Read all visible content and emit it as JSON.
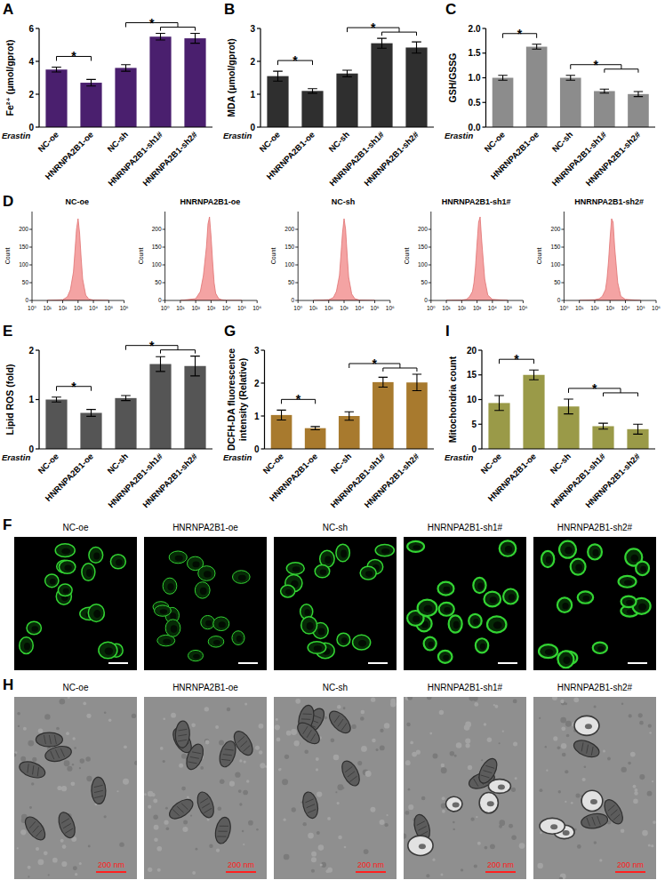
{
  "chart_data": [
    {
      "panel": "A",
      "type": "bar",
      "y_label": "Fe²⁺ (μmol/gprot)",
      "annotation": "Erastin",
      "categories": [
        "NC-oe",
        "HNRNPA2B1-oe",
        "NC-sh",
        "HNRNPA2B1-sh1#",
        "HNRNPA2B1-sh2#"
      ],
      "values": [
        3.5,
        2.7,
        3.6,
        5.5,
        5.4
      ],
      "errors": [
        0.15,
        0.2,
        0.2,
        0.2,
        0.3
      ],
      "color": "#4a1f6e",
      "ylim": [
        0,
        6
      ],
      "yticks": [
        0,
        2,
        4,
        6
      ],
      "significance": [
        {
          "groups": [
            "NC-oe",
            "HNRNPA2B1-oe"
          ],
          "label": "*"
        },
        {
          "groups": [
            "NC-sh",
            "HNRNPA2B1-sh1#",
            "HNRNPA2B1-sh2#"
          ],
          "label": "*"
        }
      ]
    },
    {
      "panel": "B",
      "type": "bar",
      "y_label": "MDA (μmol/gprot)",
      "annotation": "Erastin",
      "categories": [
        "NC-oe",
        "HNRNPA2B1-oe",
        "NC-sh",
        "HNRNPA2B1-sh1#",
        "HNRNPA2B1-sh2#"
      ],
      "values": [
        1.55,
        1.1,
        1.63,
        2.55,
        2.42
      ],
      "errors": [
        0.15,
        0.07,
        0.1,
        0.15,
        0.17
      ],
      "color": "#2f2f2f",
      "ylim": [
        0,
        3
      ],
      "yticks": [
        0,
        1,
        2,
        3
      ],
      "significance": [
        {
          "groups": [
            "NC-oe",
            "HNRNPA2B1-oe"
          ],
          "label": "*"
        },
        {
          "groups": [
            "NC-sh",
            "HNRNPA2B1-sh1#",
            "HNRNPA2B1-sh2#"
          ],
          "label": "*"
        }
      ]
    },
    {
      "panel": "C",
      "type": "bar",
      "y_label": "GSH/GSSG",
      "annotation": "Erastin",
      "categories": [
        "NC-oe",
        "HNRNPA2B1-oe",
        "NC-sh",
        "HNRNPA2B1-sh1#",
        "HNRNPA2B1-sh2#"
      ],
      "values": [
        1.0,
        1.63,
        1.0,
        0.73,
        0.67
      ],
      "errors": [
        0.05,
        0.05,
        0.05,
        0.04,
        0.05
      ],
      "color": "#8c8c8c",
      "ylim": [
        0,
        2
      ],
      "yticks": [
        {
          "value": 0,
          "label": "0.0"
        },
        {
          "value": 0.5,
          "label": "0.5"
        },
        {
          "value": 1,
          "label": "1.0"
        },
        {
          "value": 1.5,
          "label": "1.5"
        },
        {
          "value": 2,
          "label": "2.0"
        }
      ],
      "significance": [
        {
          "groups": [
            "NC-oe",
            "HNRNPA2B1-oe"
          ],
          "label": "*"
        },
        {
          "groups": [
            "NC-sh",
            "HNRNPA2B1-sh1#",
            "HNRNPA2B1-sh2#"
          ],
          "label": "*"
        }
      ]
    },
    {
      "panel": "D",
      "type": "area",
      "title": "NC-oe",
      "y_label": "Count",
      "log": "x",
      "x": [
        10,
        100,
        200,
        316,
        500,
        631,
        794,
        1000,
        1259,
        1585,
        1995,
        3162,
        5012,
        10000,
        100000
      ],
      "values": [
        0,
        2,
        10,
        30,
        80,
        140,
        200,
        230,
        190,
        120,
        60,
        15,
        4,
        1,
        0
      ],
      "color": "#f4a3a3",
      "xlim": [
        1,
        1000000
      ],
      "xticks": [
        {
          "value": 1,
          "label": "10⁰"
        },
        {
          "value": 10,
          "label": "10¹"
        },
        {
          "value": 100,
          "label": "10²"
        },
        {
          "value": 1000,
          "label": "10³"
        },
        {
          "value": 10000,
          "label": "10⁴"
        },
        {
          "value": 100000,
          "label": "10⁵"
        },
        {
          "value": 1000000,
          "label": "10⁶"
        }
      ],
      "ylim": [
        0,
        250
      ],
      "yticks": [
        0,
        50,
        100,
        150,
        200
      ]
    },
    {
      "type": "area",
      "title": "HNRNPA2B1-oe",
      "y_label": "Count",
      "log": "x",
      "x": [
        10,
        100,
        200,
        316,
        500,
        631,
        794,
        1000,
        1259,
        1585,
        1995,
        3162,
        5012,
        10000,
        100000
      ],
      "values": [
        0,
        5,
        25,
        70,
        150,
        215,
        235,
        180,
        110,
        50,
        20,
        5,
        2,
        0,
        0
      ],
      "color": "#f4a3a3",
      "xlim": [
        1,
        1000000
      ],
      "xticks": [
        {
          "value": 1,
          "label": "10⁰"
        },
        {
          "value": 10,
          "label": "10¹"
        },
        {
          "value": 100,
          "label": "10²"
        },
        {
          "value": 1000,
          "label": "10³"
        },
        {
          "value": 10000,
          "label": "10⁴"
        },
        {
          "value": 100000,
          "label": "10⁵"
        },
        {
          "value": 1000000,
          "label": "10⁶"
        }
      ],
      "ylim": [
        0,
        250
      ],
      "yticks": [
        0,
        50,
        100,
        150,
        200
      ]
    },
    {
      "type": "area",
      "title": "NC-sh",
      "y_label": "Count",
      "log": "x",
      "x": [
        10,
        100,
        200,
        316,
        500,
        631,
        794,
        1000,
        1259,
        1585,
        1995,
        3162,
        5012,
        10000,
        100000
      ],
      "values": [
        0,
        2,
        8,
        25,
        70,
        130,
        190,
        230,
        200,
        130,
        65,
        18,
        5,
        1,
        0
      ],
      "color": "#f4a3a3",
      "xlim": [
        1,
        1000000
      ],
      "xticks": [
        {
          "value": 1,
          "label": "10⁰"
        },
        {
          "value": 10,
          "label": "10¹"
        },
        {
          "value": 100,
          "label": "10²"
        },
        {
          "value": 1000,
          "label": "10³"
        },
        {
          "value": 10000,
          "label": "10⁴"
        },
        {
          "value": 100000,
          "label": "10⁵"
        },
        {
          "value": 1000000,
          "label": "10⁶"
        }
      ],
      "ylim": [
        0,
        250
      ],
      "yticks": [
        0,
        50,
        100,
        150,
        200
      ]
    },
    {
      "type": "area",
      "title": "HNRNPA2B1-sh1#",
      "y_label": "Count",
      "log": "x",
      "x": [
        10,
        100,
        200,
        316,
        500,
        631,
        794,
        1000,
        1259,
        1585,
        1995,
        3162,
        5012,
        10000,
        100000
      ],
      "values": [
        0,
        1,
        3,
        10,
        25,
        50,
        95,
        160,
        220,
        235,
        170,
        60,
        15,
        3,
        0
      ],
      "color": "#f4a3a3",
      "xlim": [
        1,
        1000000
      ],
      "xticks": [
        {
          "value": 1,
          "label": "10⁰"
        },
        {
          "value": 10,
          "label": "10¹"
        },
        {
          "value": 100,
          "label": "10²"
        },
        {
          "value": 1000,
          "label": "10³"
        },
        {
          "value": 10000,
          "label": "10⁴"
        },
        {
          "value": 100000,
          "label": "10⁵"
        },
        {
          "value": 1000000,
          "label": "10⁶"
        }
      ],
      "ylim": [
        0,
        250
      ],
      "yticks": [
        0,
        50,
        100,
        150,
        200
      ]
    },
    {
      "type": "area",
      "title": "HNRNPA2B1-sh2#",
      "y_label": "Count",
      "log": "x",
      "x": [
        10,
        100,
        200,
        316,
        500,
        631,
        794,
        1000,
        1259,
        1585,
        1995,
        3162,
        5012,
        10000,
        100000
      ],
      "values": [
        0,
        2,
        5,
        12,
        30,
        60,
        110,
        175,
        230,
        220,
        150,
        50,
        12,
        3,
        0
      ],
      "color": "#f4a3a3",
      "xlim": [
        1,
        1000000
      ],
      "xticks": [
        {
          "value": 1,
          "label": "10⁰"
        },
        {
          "value": 10,
          "label": "10¹"
        },
        {
          "value": 100,
          "label": "10²"
        },
        {
          "value": 1000,
          "label": "10³"
        },
        {
          "value": 10000,
          "label": "10⁴"
        },
        {
          "value": 100000,
          "label": "10⁵"
        },
        {
          "value": 1000000,
          "label": "10⁶"
        }
      ],
      "ylim": [
        0,
        250
      ],
      "yticks": [
        0,
        50,
        100,
        150,
        200
      ]
    },
    {
      "panel": "E",
      "type": "bar",
      "y_label": "Lipid ROS (fold)",
      "annotation": "Erastin",
      "categories": [
        "NC-oe",
        "HNRNPA2B1-oe",
        "NC-sh",
        "HNRNPA2B1-sh1#",
        "HNRNPA2B1-sh2#"
      ],
      "values": [
        1.0,
        0.73,
        1.03,
        1.72,
        1.68
      ],
      "errors": [
        0.05,
        0.07,
        0.05,
        0.15,
        0.2
      ],
      "color": "#555555",
      "ylim": [
        0,
        2
      ],
      "yticks": [
        0,
        1,
        2
      ],
      "significance": [
        {
          "groups": [
            "NC-oe",
            "HNRNPA2B1-oe"
          ],
          "label": "*"
        },
        {
          "groups": [
            "NC-sh",
            "HNRNPA2B1-sh1#",
            "HNRNPA2B1-sh2#"
          ],
          "label": "*"
        }
      ]
    },
    {
      "panel": "G",
      "type": "bar",
      "y_label": "DCFH-DA fluorescence intensity (Relative)",
      "annotation": "Erastin",
      "categories": [
        "NC-oe",
        "HNRNPA2B1-oe",
        "NC-sh",
        "HNRNPA2B1-sh1#",
        "HNRNPA2B1-sh2#"
      ],
      "values": [
        1.03,
        0.63,
        1.0,
        2.03,
        2.02
      ],
      "errors": [
        0.15,
        0.05,
        0.13,
        0.15,
        0.25
      ],
      "color": "#a87a2e",
      "ylim": [
        0,
        3
      ],
      "yticks": [
        0,
        1,
        2,
        3
      ],
      "significance": [
        {
          "groups": [
            "NC-oe",
            "HNRNPA2B1-oe"
          ],
          "label": "*"
        },
        {
          "groups": [
            "NC-sh",
            "HNRNPA2B1-sh1#",
            "HNRNPA2B1-sh2#"
          ],
          "label": "*"
        }
      ]
    },
    {
      "panel": "I",
      "type": "bar",
      "y_label": "Mitochondria count",
      "annotation": "Erastin",
      "categories": [
        "NC-oe",
        "HNRNPA2B1-oe",
        "NC-sh",
        "HNRNPA2B1-sh1#",
        "HNRNPA2B1-sh2#"
      ],
      "values": [
        9.3,
        15,
        8.6,
        4.6,
        4.0
      ],
      "errors": [
        1.5,
        1.0,
        1.5,
        0.6,
        1.0
      ],
      "color": "#9a9a48",
      "ylim": [
        0,
        20
      ],
      "yticks": [
        0,
        5,
        10,
        15,
        20
      ],
      "significance": [
        {
          "groups": [
            "NC-oe",
            "HNRNPA2B1-oe"
          ],
          "label": "*"
        },
        {
          "groups": [
            "NC-sh",
            "HNRNPA2B1-sh1#",
            "HNRNPA2B1-sh2#"
          ],
          "label": "*"
        }
      ]
    }
  ],
  "images": [
    {
      "panel": "F",
      "kind": "fluorescence",
      "labels": [
        "NC-oe",
        "HNRNPA2B1-oe",
        "NC-sh",
        "HNRNPA2B1-sh1#",
        "HNRNPA2B1-sh2#"
      ]
    },
    {
      "panel": "H",
      "kind": "electron-microscopy",
      "labels": [
        "NC-oe",
        "HNRNPA2B1-oe",
        "NC-sh",
        "HNRNPA2B1-sh1#",
        "HNRNPA2B1-sh2#"
      ],
      "scale_bar": "200 nm"
    }
  ]
}
